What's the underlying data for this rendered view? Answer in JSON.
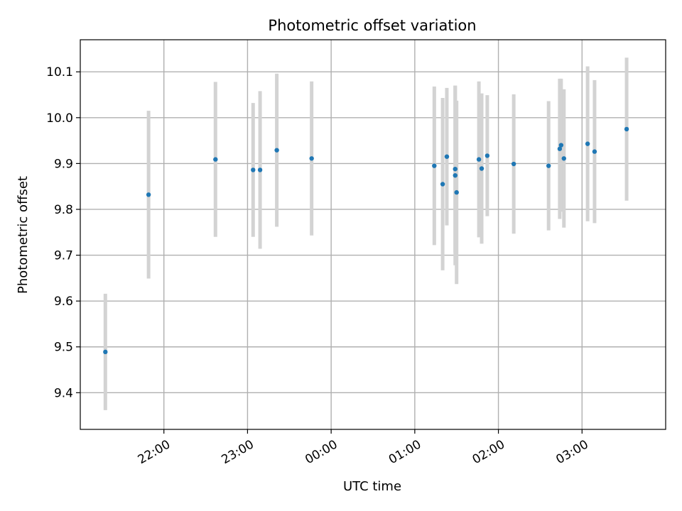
{
  "chart_data": {
    "type": "scatter",
    "title": "Photometric offset variation",
    "xlabel": "UTC time",
    "ylabel": "Photometric offset",
    "x_unit": "UTC time of night, 21:00 to 04:00",
    "xlim": [
      "21:00",
      "04:00"
    ],
    "ylim": [
      9.32,
      10.17
    ],
    "grid": true,
    "legend": "none",
    "x_ticks": [
      "22:00",
      "23:00",
      "00:00",
      "01:00",
      "02:00",
      "03:00"
    ],
    "y_ticks": [
      "9.4",
      "9.5",
      "9.6",
      "9.7",
      "9.8",
      "9.9",
      "10.0",
      "10.1"
    ],
    "colors": {
      "marker": "#1f77b4",
      "errorbar": "#d3d3d3",
      "grid": "#b0b0b0"
    },
    "points": [
      {
        "x": "21:18",
        "y": 9.489,
        "err": 0.127
      },
      {
        "x": "21:49",
        "y": 9.832,
        "err": 0.183
      },
      {
        "x": "22:37",
        "y": 9.909,
        "err": 0.169
      },
      {
        "x": "23:04",
        "y": 9.886,
        "err": 0.146
      },
      {
        "x": "23:09",
        "y": 9.886,
        "err": 0.172
      },
      {
        "x": "23:21",
        "y": 9.929,
        "err": 0.167
      },
      {
        "x": "23:46",
        "y": 9.911,
        "err": 0.168
      },
      {
        "x": "01:14",
        "y": 9.895,
        "err": 0.173
      },
      {
        "x": "01:20",
        "y": 9.855,
        "err": 0.188
      },
      {
        "x": "01:23",
        "y": 9.915,
        "err": 0.15
      },
      {
        "x": "01:29",
        "y": 9.874,
        "err": 0.196
      },
      {
        "x": "01:29",
        "y": 9.888,
        "err": 0.182
      },
      {
        "x": "01:30",
        "y": 9.837,
        "err": 0.2
      },
      {
        "x": "01:46",
        "y": 9.909,
        "err": 0.17
      },
      {
        "x": "01:48",
        "y": 9.889,
        "err": 0.164
      },
      {
        "x": "01:52",
        "y": 9.917,
        "err": 0.132
      },
      {
        "x": "02:11",
        "y": 9.899,
        "err": 0.152
      },
      {
        "x": "02:36",
        "y": 9.895,
        "err": 0.141
      },
      {
        "x": "02:44",
        "y": 9.932,
        "err": 0.153
      },
      {
        "x": "02:45",
        "y": 9.94,
        "err": 0.145
      },
      {
        "x": "02:47",
        "y": 9.911,
        "err": 0.151
      },
      {
        "x": "03:04",
        "y": 9.943,
        "err": 0.169
      },
      {
        "x": "03:09",
        "y": 9.926,
        "err": 0.156
      },
      {
        "x": "03:32",
        "y": 9.975,
        "err": 0.156
      }
    ]
  }
}
